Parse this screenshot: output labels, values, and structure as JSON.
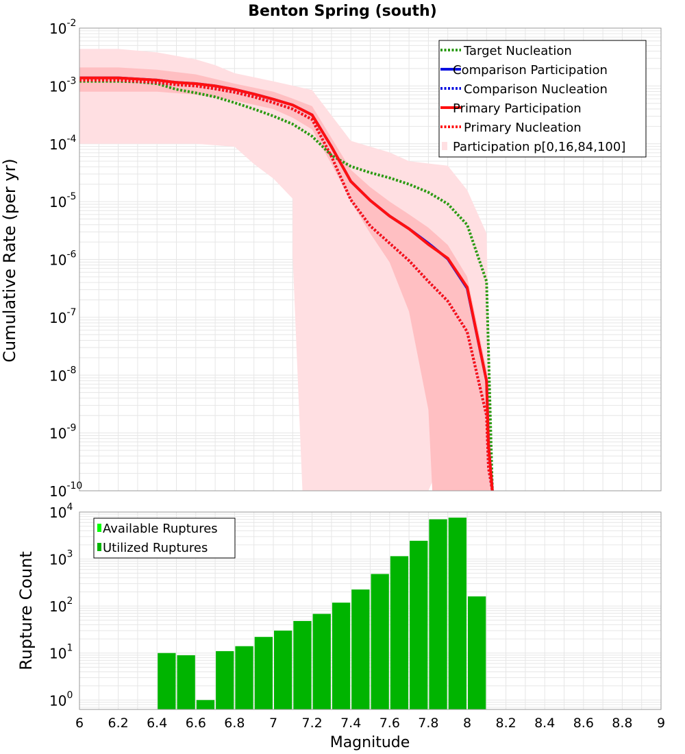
{
  "colors": {
    "target": "#2a9a12",
    "comparison": "#0a10e0",
    "primary": "#ff1010",
    "band_outer": "#ffdfe2",
    "band_inner": "#ffbfc2",
    "bars": "#00b400",
    "bars_available": "#00ff00",
    "grid": "#e6e6e6"
  },
  "chart_data": [
    {
      "type": "line",
      "title": "Benton Spring (south)",
      "xlabel": "Magnitude",
      "ylabel": "Cumulative Rate (per yr)",
      "xlim": [
        6,
        9
      ],
      "ylim_log10": [
        -10,
        -2
      ],
      "yscale": "log",
      "y_tick_exponents": [
        -2,
        -3,
        -4,
        -5,
        -6,
        -7,
        -8,
        -9,
        -10
      ],
      "y_tick_base": "10",
      "legend": [
        {
          "label": "Target Nucleation",
          "color_key": "target",
          "style": "dotted"
        },
        {
          "label": "Comparison Participation",
          "color_key": "comparison",
          "style": "solid"
        },
        {
          "label": "Comparison Nucleation",
          "color_key": "comparison",
          "style": "dotted"
        },
        {
          "label": "Primary Participation",
          "color_key": "primary",
          "style": "solid"
        },
        {
          "label": "Primary Nucleation",
          "color_key": "primary",
          "style": "dotted"
        },
        {
          "label": "Participation p[0,16,84,100]",
          "color_key": "band_outer",
          "style": "box"
        }
      ],
      "series": [
        {
          "name": "Target Nucleation",
          "color_key": "target",
          "style": "dotted",
          "x": [
            6.0,
            6.1,
            6.2,
            6.3,
            6.4,
            6.5,
            6.6,
            6.7,
            6.8,
            6.9,
            7.0,
            7.1,
            7.2,
            7.3,
            7.4,
            7.5,
            7.6,
            7.7,
            7.8,
            7.9,
            8.0,
            8.1,
            8.13
          ],
          "log10_y": [
            -2.92,
            -2.92,
            -2.92,
            -2.93,
            -2.96,
            -3.06,
            -3.12,
            -3.19,
            -3.29,
            -3.4,
            -3.52,
            -3.66,
            -3.87,
            -4.2,
            -4.39,
            -4.5,
            -4.59,
            -4.7,
            -4.84,
            -5.04,
            -5.4,
            -6.38,
            -10.0
          ]
        },
        {
          "name": "Comparison Participation",
          "color_key": "comparison",
          "style": "solid",
          "x": [
            6.0,
            6.1,
            6.2,
            6.3,
            6.4,
            6.5,
            6.6,
            6.7,
            6.8,
            6.9,
            7.0,
            7.1,
            7.2,
            7.3,
            7.4,
            7.5,
            7.6,
            7.7,
            7.8,
            7.9,
            8.0,
            8.1,
            8.11,
            8.13
          ],
          "log10_y": [
            -2.86,
            -2.86,
            -2.86,
            -2.88,
            -2.9,
            -2.94,
            -2.96,
            -3.0,
            -3.06,
            -3.14,
            -3.23,
            -3.33,
            -3.5,
            -4.05,
            -4.65,
            -4.98,
            -5.25,
            -5.47,
            -5.72,
            -5.99,
            -6.5,
            -8.1,
            -9.2,
            -10.0
          ]
        },
        {
          "name": "Comparison Nucleation",
          "color_key": "comparison",
          "style": "dotted",
          "x": [
            6.0,
            6.1,
            6.2,
            6.3,
            6.4,
            6.5,
            6.6,
            6.7,
            6.8,
            6.9,
            7.0,
            7.1,
            7.2,
            7.3,
            7.4,
            7.5,
            7.6,
            7.7,
            7.8,
            7.9,
            8.0,
            8.1,
            8.11,
            8.13
          ],
          "log10_y": [
            -2.9,
            -2.9,
            -2.9,
            -2.92,
            -2.94,
            -2.98,
            -3.0,
            -3.05,
            -3.11,
            -3.19,
            -3.29,
            -3.4,
            -3.58,
            -4.22,
            -4.97,
            -5.42,
            -5.72,
            -6.02,
            -6.38,
            -6.72,
            -7.25,
            -8.7,
            -9.6,
            -10.0
          ]
        },
        {
          "name": "Primary Participation",
          "color_key": "primary",
          "style": "solid",
          "x": [
            6.0,
            6.1,
            6.2,
            6.3,
            6.4,
            6.5,
            6.6,
            6.7,
            6.8,
            6.9,
            7.0,
            7.1,
            7.2,
            7.3,
            7.4,
            7.5,
            7.6,
            7.7,
            7.8,
            7.9,
            8.0,
            8.1,
            8.11,
            8.13
          ],
          "log10_y": [
            -2.86,
            -2.86,
            -2.86,
            -2.88,
            -2.9,
            -2.94,
            -2.96,
            -3.0,
            -3.06,
            -3.14,
            -3.23,
            -3.33,
            -3.5,
            -4.05,
            -4.65,
            -4.98,
            -5.25,
            -5.47,
            -5.74,
            -5.98,
            -6.48,
            -8.1,
            -9.2,
            -10.0
          ]
        },
        {
          "name": "Primary Nucleation",
          "color_key": "primary",
          "style": "dotted",
          "x": [
            6.0,
            6.1,
            6.2,
            6.3,
            6.4,
            6.5,
            6.6,
            6.7,
            6.8,
            6.9,
            7.0,
            7.1,
            7.2,
            7.3,
            7.4,
            7.5,
            7.6,
            7.7,
            7.8,
            7.9,
            8.0,
            8.1,
            8.11,
            8.13
          ],
          "log10_y": [
            -2.9,
            -2.9,
            -2.9,
            -2.92,
            -2.94,
            -2.98,
            -3.0,
            -3.05,
            -3.11,
            -3.19,
            -3.29,
            -3.4,
            -3.58,
            -4.22,
            -4.97,
            -5.42,
            -5.72,
            -6.02,
            -6.38,
            -6.72,
            -7.25,
            -8.7,
            -9.6,
            -10.0
          ]
        }
      ],
      "bands": [
        {
          "name": "Participation p[0,100]",
          "color_key": "band_outer",
          "upper": {
            "x": [
              6.0,
              6.2,
              6.4,
              6.6,
              6.7,
              6.8,
              7.0,
              7.2,
              7.4,
              7.5,
              7.6,
              7.7,
              7.9,
              8.0,
              8.1,
              8.13
            ],
            "log10_y": [
              -2.36,
              -2.36,
              -2.42,
              -2.54,
              -2.64,
              -2.78,
              -2.92,
              -3.07,
              -3.95,
              -4.05,
              -4.15,
              -4.3,
              -4.38,
              -4.8,
              -5.55,
              -10.0
            ]
          },
          "lower": {
            "x": [
              6.0,
              6.2,
              6.4,
              6.6,
              6.8,
              6.9,
              7.0,
              7.1,
              7.1,
              7.15,
              7.8,
              7.8,
              8.03,
              8.05
            ],
            "log10_y": [
              -4.0,
              -4.0,
              -4.0,
              -4.0,
              -4.05,
              -4.35,
              -4.6,
              -4.95,
              -5.95,
              -10.0,
              -10.0,
              -10.0,
              -8.2,
              -10.0
            ]
          }
        },
        {
          "name": "Participation p[16,84]",
          "color_key": "band_inner",
          "upper": {
            "x": [
              6.0,
              6.2,
              6.4,
              6.6,
              6.8,
              7.0,
              7.1,
              7.2,
              7.3,
              7.4,
              7.5,
              7.6,
              7.7,
              7.8,
              7.9,
              8.0,
              8.1,
              8.13
            ],
            "log10_y": [
              -2.68,
              -2.68,
              -2.72,
              -2.8,
              -2.96,
              -3.1,
              -3.22,
              -3.35,
              -3.9,
              -4.45,
              -4.75,
              -5.0,
              -5.22,
              -5.45,
              -5.75,
              -6.3,
              -7.9,
              -10.0
            ]
          },
          "lower": {
            "x": [
              6.0,
              6.2,
              6.4,
              6.6,
              6.8,
              7.0,
              7.1,
              7.2,
              7.3,
              7.4,
              7.5,
              7.6,
              7.7,
              7.8,
              7.82,
              8.0,
              8.1,
              8.13
            ],
            "log10_y": [
              -3.1,
              -3.1,
              -3.1,
              -3.15,
              -3.25,
              -3.4,
              -3.55,
              -3.75,
              -4.35,
              -5.0,
              -5.55,
              -6.05,
              -6.9,
              -8.6,
              -10.0,
              -10.0,
              -10.0,
              -10.0
            ]
          }
        }
      ]
    },
    {
      "type": "bar",
      "xlabel": "Magnitude",
      "ylabel": "Rupture Count",
      "xlim": [
        6,
        9
      ],
      "ylim_log10": [
        -0.2,
        4
      ],
      "yscale": "log",
      "y_tick_exponents": [
        0,
        1,
        2,
        3,
        4
      ],
      "y_tick_base": "10",
      "x_ticks": [
        "6",
        "6.2",
        "6.4",
        "6.6",
        "6.8",
        "7",
        "7.2",
        "7.4",
        "7.6",
        "7.8",
        "8",
        "8.2",
        "8.4",
        "8.6",
        "8.8",
        "9"
      ],
      "bin_width": 0.1,
      "bin_starts": [
        6.4,
        6.5,
        6.6,
        6.7,
        6.8,
        6.9,
        7.0,
        7.1,
        7.2,
        7.3,
        7.4,
        7.5,
        7.6,
        7.7,
        7.8,
        7.9,
        8.0
      ],
      "values": [
        10,
        9,
        1,
        11,
        14,
        22,
        30,
        48,
        68,
        118,
        225,
        480,
        1150,
        2450,
        7000,
        7600,
        160
      ],
      "legend": [
        {
          "label": "Available Ruptures",
          "color_key": "bars_available"
        },
        {
          "label": "Utilized Ruptures",
          "color_key": "bars"
        }
      ]
    }
  ]
}
